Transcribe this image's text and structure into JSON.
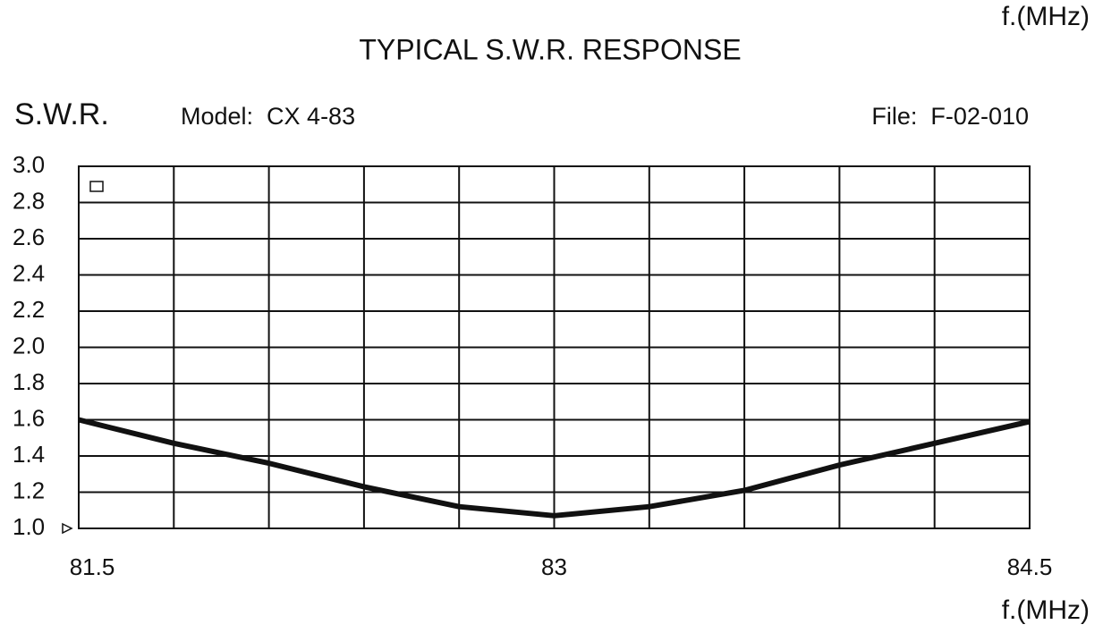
{
  "chart_data": {
    "type": "line",
    "title": "TYPICAL S.W.R. RESPONSE",
    "top_label": "f.(MHz)",
    "y_label": "S.W.R.",
    "model": "Model:  CX 4-83",
    "file": "File:  F-02-010",
    "x_label": "f.(MHz)",
    "x": [
      81.5,
      81.8,
      82.1,
      82.4,
      82.7,
      83.0,
      83.3,
      83.6,
      83.9,
      84.2,
      84.5
    ],
    "series": [
      {
        "name": "S.W.R.",
        "color": "#111111",
        "values": [
          1.6,
          1.47,
          1.36,
          1.23,
          1.12,
          1.07,
          1.12,
          1.21,
          1.35,
          1.47,
          1.59
        ]
      }
    ],
    "xlim": [
      81.5,
      84.5
    ],
    "xticks": [
      81.5,
      83,
      84.5
    ],
    "xgrid": [
      81.8,
      82.1,
      82.4,
      82.7,
      83.0,
      83.3,
      83.6,
      83.9,
      84.2
    ],
    "ylim": [
      1.0,
      3.0
    ],
    "yticks": [
      {
        "value": 1.0,
        "label": "1.0"
      },
      1.2,
      1.4,
      1.6,
      1.8,
      {
        "value": 2.0,
        "label": "2.0"
      },
      2.2,
      2.4,
      2.6,
      2.8,
      {
        "value": 3.0,
        "label": "3.0"
      }
    ],
    "grid": true
  }
}
